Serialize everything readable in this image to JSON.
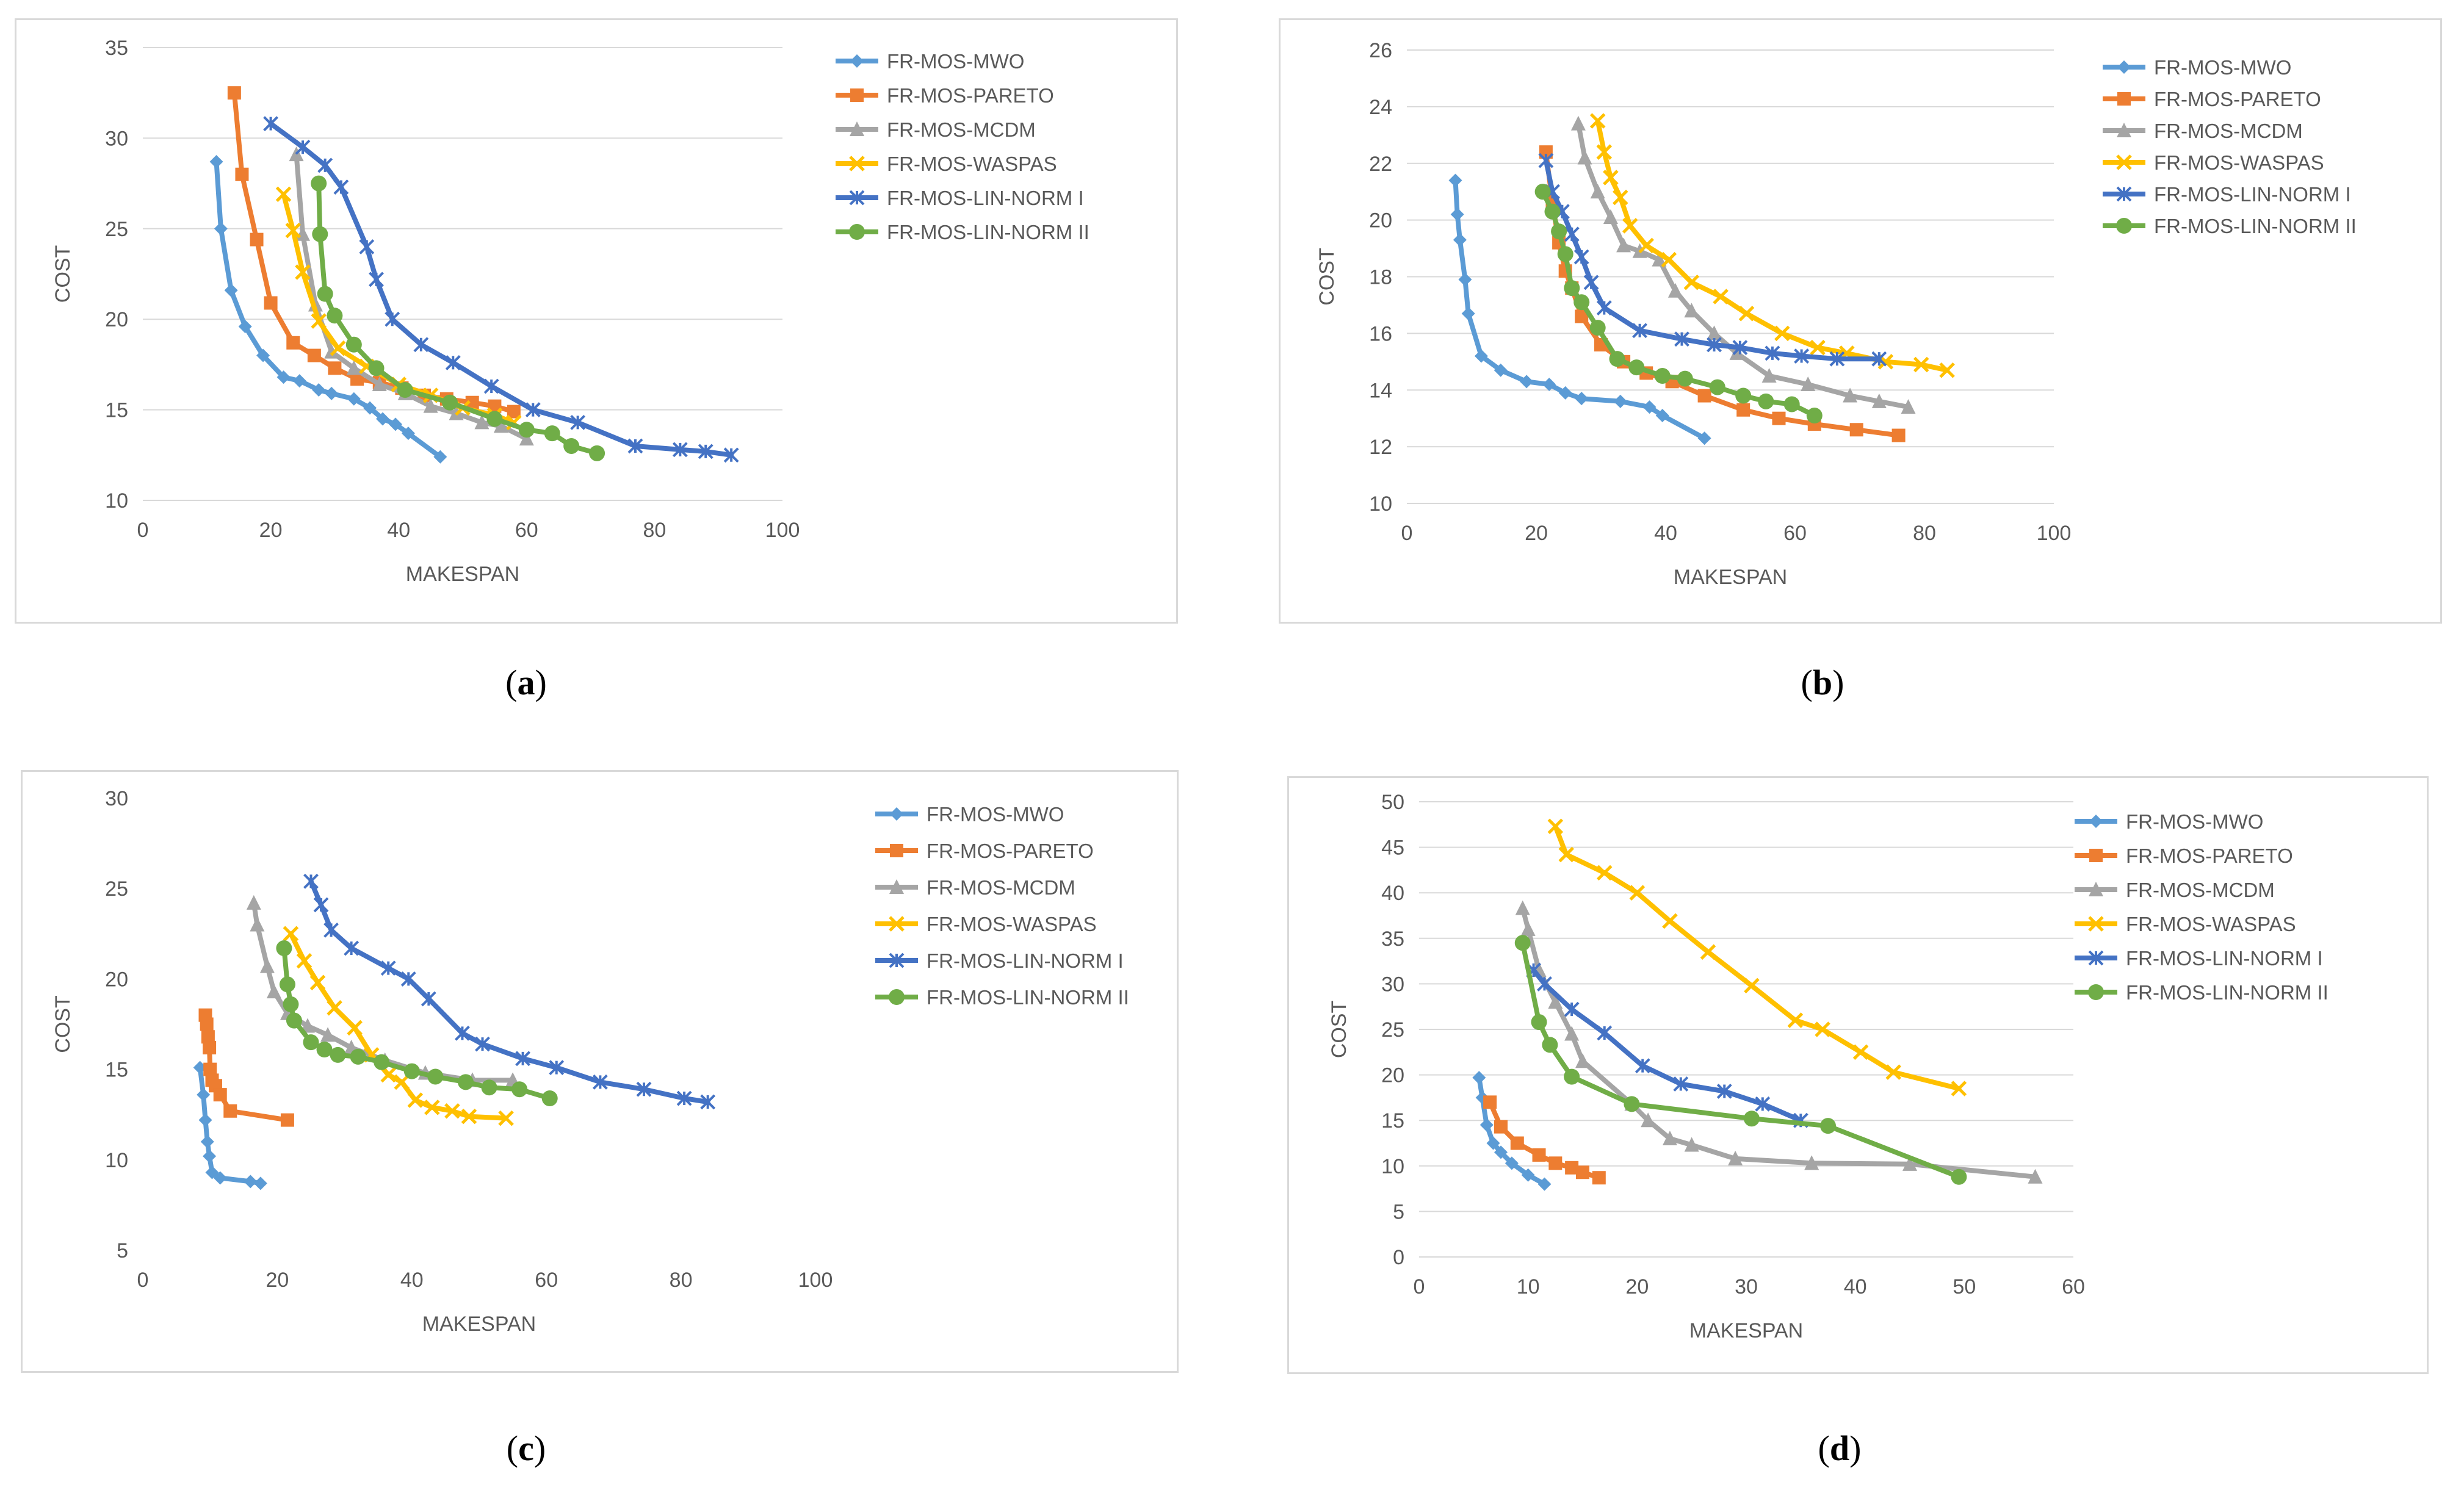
{
  "colors": {
    "FR-MOS-MWO": "#5b9bd5",
    "FR-MOS-PARETO": "#ed7d31",
    "FR-MOS-MCDM": "#a5a5a5",
    "FR-MOS-WASPAS": "#ffc000",
    "FR-MOS-LIN-NORM I": "#4472c4",
    "FR-MOS-LIN-NORM II": "#70ad47"
  },
  "markers": {
    "FR-MOS-MWO": "diamond",
    "FR-MOS-PARETO": "square",
    "FR-MOS-MCDM": "triangle",
    "FR-MOS-WASPAS": "x",
    "FR-MOS-LIN-NORM I": "asterisk",
    "FR-MOS-LIN-NORM II": "circle"
  },
  "chart_data": [
    {
      "type": "line",
      "caption": [
        "(",
        "a",
        ")"
      ],
      "xlabel": "MAKESPAN",
      "ylabel": "COST",
      "xlim": [
        0,
        100
      ],
      "ylim": [
        10,
        35
      ],
      "xticks": [
        0,
        20,
        40,
        60,
        80,
        100
      ],
      "yticks": [
        10,
        15,
        20,
        25,
        30,
        35
      ],
      "grid": "horizontal",
      "legend": "right",
      "series": [
        {
          "name": "FR-MOS-MWO",
          "x": [
            11.5,
            12.2,
            13.8,
            16,
            18.8,
            22,
            24.5,
            27.5,
            29.5,
            33,
            35.5,
            37.5,
            39.5,
            41.5,
            46.5
          ],
          "y": [
            28.7,
            25,
            21.6,
            19.6,
            18,
            16.8,
            16.6,
            16.1,
            15.9,
            15.6,
            15.1,
            14.5,
            14.2,
            13.7,
            12.4
          ]
        },
        {
          "name": "FR-MOS-PARETO",
          "x": [
            14.3,
            15.5,
            17.8,
            20,
            23.5,
            26.8,
            30,
            33.5,
            37,
            40.5,
            44,
            47.5,
            51.5,
            55,
            58
          ],
          "y": [
            32.5,
            28,
            24.4,
            20.9,
            18.7,
            18,
            17.3,
            16.7,
            16.5,
            16.2,
            15.8,
            15.6,
            15.4,
            15.2,
            14.9
          ]
        },
        {
          "name": "FR-MOS-MCDM",
          "x": [
            24,
            25,
            27,
            29.5,
            33,
            37,
            41,
            45,
            49,
            53,
            56,
            60
          ],
          "y": [
            29.1,
            24.7,
            20.8,
            18.2,
            17.3,
            16.4,
            15.9,
            15.2,
            14.8,
            14.3,
            14.1,
            13.4
          ]
        },
        {
          "name": "FR-MOS-WASPAS",
          "x": [
            22,
            23.5,
            25,
            27.5,
            30.5,
            35,
            40,
            45,
            50,
            55,
            58
          ],
          "y": [
            26.9,
            24.9,
            22.6,
            19.9,
            18.4,
            17.4,
            16.4,
            15.8,
            15.1,
            14.7,
            14.3
          ]
        },
        {
          "name": "FR-MOS-LIN-NORM I",
          "x": [
            20,
            25,
            28.5,
            31,
            35,
            36.5,
            39,
            43.5,
            48.5,
            54.5,
            61,
            68,
            77,
            84,
            88,
            92
          ],
          "y": [
            30.8,
            29.5,
            28.5,
            27.3,
            24,
            22.2,
            20,
            18.6,
            17.6,
            16.3,
            15,
            14.3,
            13,
            12.8,
            12.7,
            12.5
          ]
        },
        {
          "name": "FR-MOS-LIN-NORM II",
          "x": [
            27.5,
            27.7,
            28.5,
            30,
            33,
            36.5,
            41,
            48,
            55,
            60,
            64,
            67,
            71
          ],
          "y": [
            27.5,
            24.7,
            21.4,
            20.2,
            18.6,
            17.3,
            16.1,
            15.4,
            14.5,
            13.9,
            13.7,
            13,
            12.6
          ]
        }
      ]
    },
    {
      "type": "line",
      "caption": [
        "(",
        "b",
        ")"
      ],
      "xlabel": "MAKESPAN",
      "ylabel": "COST",
      "xlim": [
        0,
        100
      ],
      "ylim": [
        10,
        26
      ],
      "xticks": [
        0,
        20,
        40,
        60,
        80,
        100
      ],
      "yticks": [
        10,
        12,
        14,
        16,
        18,
        20,
        22,
        24,
        26
      ],
      "grid": "horizontal",
      "legend": "right",
      "series": [
        {
          "name": "FR-MOS-MWO",
          "x": [
            7.5,
            7.8,
            8.2,
            9,
            9.5,
            11.5,
            14.5,
            18.5,
            22,
            24.5,
            27,
            33,
            37.5,
            39.5,
            46
          ],
          "y": [
            21.4,
            20.2,
            19.3,
            17.9,
            16.7,
            15.2,
            14.7,
            14.3,
            14.2,
            13.9,
            13.7,
            13.6,
            13.4,
            13.1,
            12.3
          ]
        },
        {
          "name": "FR-MOS-PARETO",
          "x": [
            21.5,
            22.5,
            23.5,
            24.5,
            25.5,
            27,
            30,
            33.5,
            37,
            41,
            46,
            52,
            57.5,
            63,
            69.5,
            76
          ],
          "y": [
            22.4,
            20.6,
            19.2,
            18.2,
            17.6,
            16.6,
            15.6,
            15,
            14.6,
            14.3,
            13.8,
            13.3,
            13,
            12.8,
            12.6,
            12.4
          ]
        },
        {
          "name": "FR-MOS-MCDM",
          "x": [
            26.5,
            27.5,
            29.5,
            31.5,
            33.5,
            36,
            39,
            41.5,
            44,
            47.5,
            51,
            56,
            62,
            68.5,
            73,
            77.5
          ],
          "y": [
            23.4,
            22.2,
            21,
            20.1,
            19.1,
            18.9,
            18.6,
            17.5,
            16.8,
            16,
            15.3,
            14.5,
            14.2,
            13.8,
            13.6,
            13.4
          ]
        },
        {
          "name": "FR-MOS-WASPAS",
          "x": [
            29.5,
            30.5,
            31.5,
            33,
            34.5,
            37,
            40.5,
            44,
            48.5,
            52.5,
            58,
            63.5,
            68,
            74,
            79.5,
            83.5
          ],
          "y": [
            23.5,
            22.4,
            21.5,
            20.8,
            19.8,
            19.1,
            18.6,
            17.8,
            17.3,
            16.7,
            16,
            15.5,
            15.3,
            15,
            14.9,
            14.7
          ]
        },
        {
          "name": "FR-MOS-LIN-NORM I",
          "x": [
            21.5,
            22.5,
            24,
            25.5,
            27,
            28.5,
            30.5,
            36,
            42.5,
            47.5,
            51.5,
            56.5,
            61,
            66.5,
            73
          ],
          "y": [
            22.1,
            21,
            20.3,
            19.5,
            18.7,
            17.8,
            16.9,
            16.1,
            15.8,
            15.6,
            15.5,
            15.3,
            15.2,
            15.1,
            15.1
          ]
        },
        {
          "name": "FR-MOS-LIN-NORM II",
          "x": [
            21,
            22.5,
            23.5,
            24.5,
            25.5,
            27,
            29.5,
            32.5,
            35.5,
            39.5,
            43,
            48,
            52,
            55.5,
            59.5,
            63
          ],
          "y": [
            21,
            20.3,
            19.6,
            18.8,
            17.6,
            17.1,
            16.2,
            15.1,
            14.8,
            14.5,
            14.4,
            14.1,
            13.8,
            13.6,
            13.5,
            13.1
          ]
        }
      ]
    },
    {
      "type": "line",
      "caption": [
        "(",
        "c",
        ")"
      ],
      "xlabel": "MAKESPAN",
      "ylabel": "COST",
      "xlim": [
        0,
        100
      ],
      "ylim": [
        5,
        30
      ],
      "xticks": [
        0,
        20,
        40,
        60,
        80,
        100
      ],
      "yticks": [
        5,
        10,
        15,
        20,
        25,
        30
      ],
      "grid": "none",
      "legend": "right",
      "series": [
        {
          "name": "FR-MOS-MWO",
          "x": [
            8.5,
            9,
            9.3,
            9.6,
            9.9,
            10.3,
            11.5,
            16,
            17.5
          ],
          "y": [
            15.1,
            13.6,
            12.2,
            11,
            10.2,
            9.3,
            9,
            8.8,
            8.7
          ]
        },
        {
          "name": "FR-MOS-PARETO",
          "x": [
            9.3,
            9.5,
            9.7,
            9.9,
            10,
            10.3,
            10.8,
            11.5,
            13,
            21.5
          ],
          "y": [
            18,
            17.5,
            16.8,
            16.2,
            15,
            14.4,
            14.1,
            13.6,
            12.7,
            12.2
          ]
        },
        {
          "name": "FR-MOS-MCDM",
          "x": [
            16.5,
            17,
            18.5,
            19.5,
            21.5,
            24.5,
            27.5,
            31,
            36,
            42,
            49,
            55
          ],
          "y": [
            24.2,
            23,
            20.7,
            19.3,
            18.1,
            17.4,
            16.9,
            16.2,
            15.5,
            14.8,
            14.4,
            14.4
          ]
        },
        {
          "name": "FR-MOS-WASPAS",
          "x": [
            22,
            24,
            26,
            28.5,
            31.5,
            34,
            36.5,
            38.5,
            40.5,
            43,
            46,
            48.5,
            54
          ],
          "y": [
            22.5,
            21,
            19.8,
            18.4,
            17.3,
            15.8,
            14.7,
            14.3,
            13.3,
            12.9,
            12.7,
            12.4,
            12.3
          ]
        },
        {
          "name": "FR-MOS-LIN-NORM I",
          "x": [
            25,
            26.5,
            28,
            31,
            36.5,
            39.5,
            42.5,
            47.5,
            50.5,
            56.5,
            61.5,
            68,
            74.5,
            80.5,
            84
          ],
          "y": [
            25.4,
            24.1,
            22.7,
            21.7,
            20.6,
            20,
            18.9,
            17,
            16.4,
            15.6,
            15.1,
            14.3,
            13.9,
            13.4,
            13.2
          ]
        },
        {
          "name": "FR-MOS-LIN-NORM II",
          "x": [
            21,
            21.5,
            22,
            22.5,
            25,
            27,
            29,
            32,
            35.5,
            40,
            43.5,
            48,
            51.5,
            56,
            60.5
          ],
          "y": [
            21.7,
            19.7,
            18.6,
            17.7,
            16.5,
            16.1,
            15.8,
            15.7,
            15.4,
            14.9,
            14.6,
            14.3,
            14,
            13.9,
            13.4
          ]
        }
      ]
    },
    {
      "type": "line",
      "caption": [
        "(",
        "d",
        ")"
      ],
      "xlabel": "MAKESPAN",
      "ylabel": "COST",
      "xlim": [
        0,
        60
      ],
      "ylim": [
        0,
        50
      ],
      "xticks": [
        0,
        10,
        20,
        30,
        40,
        50,
        60
      ],
      "yticks": [
        0,
        5,
        10,
        15,
        20,
        25,
        30,
        35,
        40,
        45,
        50
      ],
      "grid": "horizontal",
      "legend": "right",
      "series": [
        {
          "name": "FR-MOS-MWO",
          "x": [
            5.5,
            5.8,
            6.2,
            6.8,
            7.5,
            8.5,
            10,
            11.5
          ],
          "y": [
            19.7,
            17.5,
            14.5,
            12.5,
            11.5,
            10.3,
            9,
            8
          ]
        },
        {
          "name": "FR-MOS-PARETO",
          "x": [
            6.5,
            7.5,
            9,
            11,
            12.5,
            14,
            15,
            16.5
          ],
          "y": [
            17,
            14.3,
            12.5,
            11.2,
            10.3,
            9.8,
            9.3,
            8.7
          ]
        },
        {
          "name": "FR-MOS-MCDM",
          "x": [
            9.5,
            10,
            11,
            12.5,
            14,
            15,
            19.5,
            21,
            23,
            25,
            29,
            36,
            45,
            56.5
          ],
          "y": [
            38.3,
            36,
            31.5,
            28,
            24.5,
            21.5,
            16.8,
            15,
            13,
            12.3,
            10.8,
            10.3,
            10.2,
            8.8
          ]
        },
        {
          "name": "FR-MOS-WASPAS",
          "x": [
            12.5,
            13.5,
            17,
            20,
            23,
            26.5,
            30.5,
            34.5,
            37,
            40.5,
            43.5,
            49.5
          ],
          "y": [
            47.3,
            44.2,
            42.2,
            40,
            36.9,
            33.5,
            29.8,
            26,
            25,
            22.5,
            20.3,
            18.5
          ]
        },
        {
          "name": "FR-MOS-LIN-NORM I",
          "x": [
            10.5,
            11.5,
            14,
            17,
            20.5,
            24,
            28,
            31.5,
            35
          ],
          "y": [
            31.5,
            30,
            27.2,
            24.6,
            21,
            19,
            18.2,
            16.8,
            15
          ]
        },
        {
          "name": "FR-MOS-LIN-NORM II",
          "x": [
            9.5,
            11,
            12,
            14,
            19.5,
            30.5,
            37.5,
            49.5
          ],
          "y": [
            34.5,
            25.8,
            23.3,
            19.8,
            16.8,
            15.2,
            14.4,
            8.8
          ]
        }
      ]
    }
  ]
}
